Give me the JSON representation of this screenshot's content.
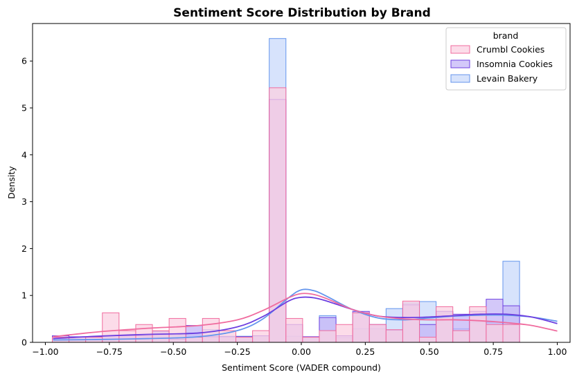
{
  "chart_data": {
    "type": "histogram",
    "title": "Sentiment Score Distribution by Brand",
    "xlabel": "Sentiment Score (VADER compound)",
    "ylabel": "Density",
    "xlim": [
      -1.05,
      1.05
    ],
    "ylim": [
      0,
      6.8
    ],
    "xticks": [
      -1.0,
      -0.75,
      -0.5,
      -0.25,
      0.0,
      0.25,
      0.5,
      0.75,
      1.0
    ],
    "xtick_labels": [
      "−1.00",
      "−0.75",
      "−0.50",
      "−0.25",
      "0.00",
      "0.25",
      "0.50",
      "0.75",
      "1.00"
    ],
    "yticks": [
      0,
      1,
      2,
      3,
      4,
      5,
      6
    ],
    "ytick_labels": [
      "0",
      "1",
      "2",
      "3",
      "4",
      "5",
      "6"
    ],
    "grid": false,
    "legend": {
      "title": "brand",
      "placement": "top-right"
    },
    "bins": {
      "start": -0.9729,
      "width": 0.0652
    },
    "series": [
      {
        "name": "Levain Bakery",
        "edge_color": "#6495ED",
        "fill_color": "#c9d9fb",
        "density": [
          0.07,
          0.07,
          0.07,
          0.1,
          0.1,
          0.1,
          0.14,
          0.14,
          0.2,
          0.27,
          0.13,
          0.13,
          0.14,
          6.48,
          0.13,
          0.1,
          0.57,
          0.1,
          0.29,
          0.29,
          0.72,
          0.84,
          0.87,
          0.66,
          0.29,
          0.43,
          0.43,
          1.73
        ],
        "kde_x": [
          -0.97,
          -0.8,
          -0.6,
          -0.4,
          -0.25,
          -0.15,
          -0.05,
          0.0,
          0.05,
          0.1,
          0.2,
          0.3,
          0.4,
          0.5,
          0.6,
          0.7,
          0.8,
          0.9,
          1.0
        ],
        "kde_y": [
          0.05,
          0.06,
          0.08,
          0.12,
          0.25,
          0.5,
          0.95,
          1.12,
          1.1,
          0.98,
          0.7,
          0.52,
          0.48,
          0.52,
          0.56,
          0.58,
          0.58,
          0.54,
          0.45
        ]
      },
      {
        "name": "Insomnia Cookies",
        "edge_color": "#6c3ee0",
        "fill_color": "#c4b6f7",
        "density": [
          0.14,
          0.12,
          0.12,
          0.14,
          0.14,
          0.14,
          0.23,
          0.07,
          0.36,
          0.12,
          0.12,
          0.12,
          0.14,
          5.18,
          0.38,
          0.12,
          0.53,
          0.14,
          0.66,
          0.38,
          0.26,
          0.8,
          0.38,
          0.66,
          0.6,
          0.66,
          0.92,
          0.78
        ],
        "kde_x": [
          -0.97,
          -0.8,
          -0.6,
          -0.4,
          -0.25,
          -0.15,
          -0.05,
          0.0,
          0.05,
          0.1,
          0.2,
          0.3,
          0.4,
          0.5,
          0.6,
          0.7,
          0.8,
          0.9,
          1.0
        ],
        "kde_y": [
          0.08,
          0.13,
          0.17,
          0.2,
          0.33,
          0.55,
          0.88,
          0.96,
          0.95,
          0.88,
          0.7,
          0.56,
          0.53,
          0.54,
          0.57,
          0.6,
          0.6,
          0.54,
          0.4
        ]
      },
      {
        "name": "Crumbl Cookies",
        "edge_color": "#f06b9e",
        "fill_color": "#fbd0e2",
        "density": [
          0.11,
          0.11,
          0.11,
          0.63,
          0.25,
          0.38,
          0.25,
          0.51,
          0.11,
          0.51,
          0.25,
          0.11,
          0.25,
          5.43,
          0.51,
          0.11,
          0.25,
          0.38,
          0.63,
          0.38,
          0.27,
          0.88,
          0.11,
          0.76,
          0.25,
          0.76,
          0.38,
          0.38
        ],
        "kde_x": [
          -0.97,
          -0.8,
          -0.6,
          -0.4,
          -0.25,
          -0.15,
          -0.05,
          0.0,
          0.05,
          0.1,
          0.2,
          0.3,
          0.4,
          0.5,
          0.6,
          0.7,
          0.8,
          0.9,
          1.0
        ],
        "kde_y": [
          0.12,
          0.22,
          0.3,
          0.36,
          0.48,
          0.68,
          0.95,
          1.04,
          1.02,
          0.93,
          0.7,
          0.56,
          0.5,
          0.48,
          0.48,
          0.46,
          0.42,
          0.36,
          0.24
        ]
      }
    ],
    "legend_order": [
      "Crumbl Cookies",
      "Insomnia Cookies",
      "Levain Bakery"
    ]
  }
}
